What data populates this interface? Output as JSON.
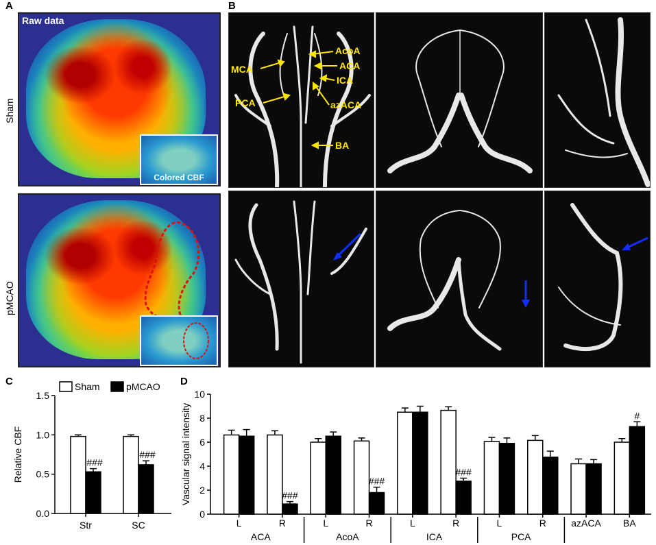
{
  "panel_labels": {
    "a": "A",
    "b": "B",
    "c": "C",
    "d": "D"
  },
  "panel_a": {
    "raw_label": "Raw data",
    "inset_label": "Colored CBF",
    "row_labels": [
      "Sham",
      "pMCAO"
    ]
  },
  "panel_b": {
    "annotations": [
      "AcoA",
      "ACA",
      "ICA",
      "azACA",
      "BA",
      "MCA",
      "PCA"
    ],
    "arrow_color": "#1030ff",
    "label_color": "#ffe600"
  },
  "chart_data": [
    {
      "type": "bar",
      "ylabel": "Relative CBF",
      "categories": [
        "Str",
        "SC"
      ],
      "series": [
        {
          "name": "Sham",
          "values": [
            0.98,
            0.98
          ],
          "errors": [
            0.02,
            0.02
          ],
          "color": "#ffffff"
        },
        {
          "name": "pMCAO",
          "values": [
            0.53,
            0.62
          ],
          "errors": [
            0.04,
            0.05
          ],
          "color": "#000000"
        }
      ],
      "annotations": [
        {
          "category": "Str",
          "series": "pMCAO",
          "text": "###"
        },
        {
          "category": "SC",
          "series": "pMCAO",
          "text": "###"
        }
      ],
      "ylim": [
        0,
        1.5
      ],
      "yticks": [
        "0.0",
        "0.5",
        "1.0",
        "1.5"
      ],
      "legend_placement": "top"
    },
    {
      "type": "bar",
      "ylabel": "Vascular signal intensity",
      "categories": [
        "L",
        "R",
        "L",
        "R",
        "L",
        "R",
        "L",
        "R",
        "azACA",
        "BA"
      ],
      "groups": [
        "ACA",
        "AcoA",
        "ICA",
        "PCA"
      ],
      "series": [
        {
          "name": "Sham",
          "values": [
            6.6,
            6.6,
            6.0,
            6.1,
            8.5,
            8.65,
            6.05,
            6.15,
            4.2,
            6.0
          ],
          "errors": [
            0.4,
            0.35,
            0.3,
            0.25,
            0.35,
            0.3,
            0.35,
            0.4,
            0.4,
            0.3
          ],
          "color": "#ffffff"
        },
        {
          "name": "pMCAO",
          "values": [
            6.5,
            0.85,
            6.5,
            1.8,
            8.5,
            2.75,
            5.9,
            4.75,
            4.2,
            7.3
          ],
          "errors": [
            0.55,
            0.2,
            0.35,
            0.45,
            0.5,
            0.25,
            0.45,
            0.5,
            0.35,
            0.4
          ],
          "color": "#000000"
        }
      ],
      "annotations": [
        {
          "index": 1,
          "text": "###"
        },
        {
          "index": 3,
          "text": "###"
        },
        {
          "index": 5,
          "text": "###"
        },
        {
          "index": 9,
          "text": "#"
        }
      ],
      "ylim": [
        0,
        10
      ],
      "yticks": [
        "0",
        "2",
        "4",
        "6",
        "8",
        "10"
      ]
    }
  ]
}
